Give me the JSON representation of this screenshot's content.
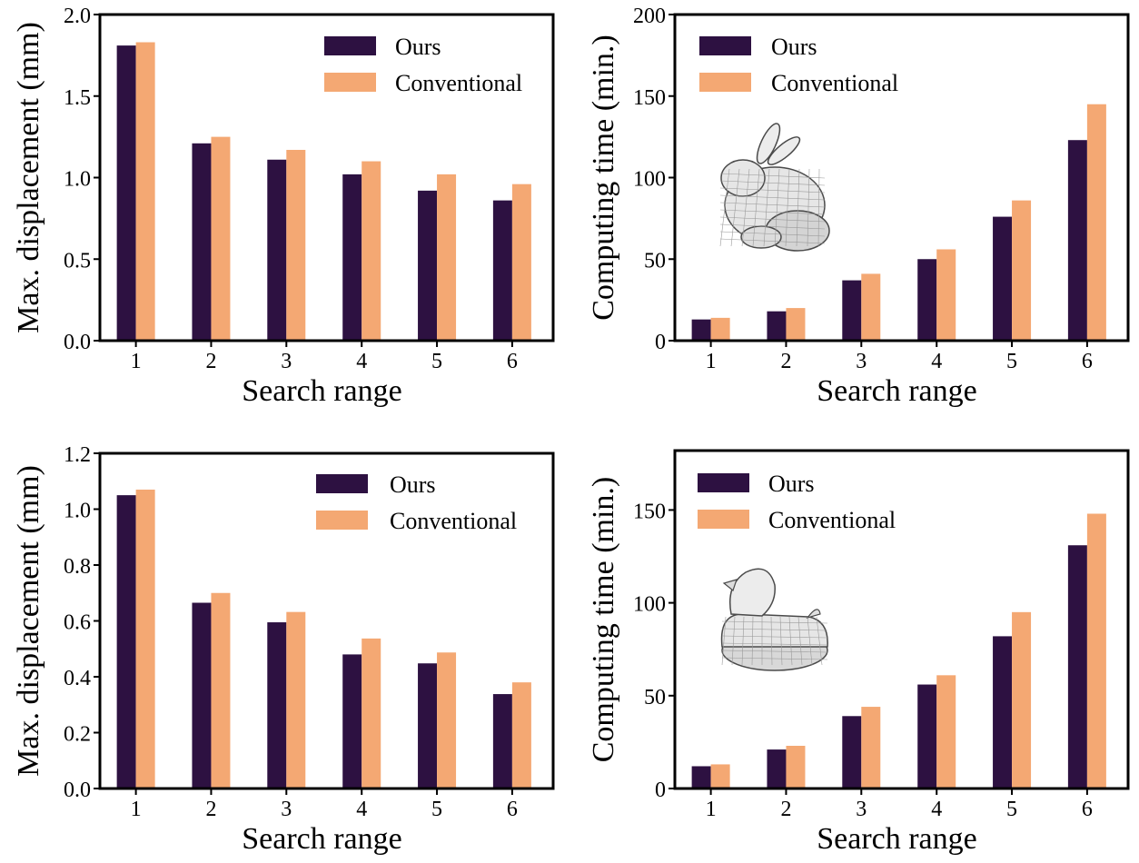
{
  "colors": {
    "ours": "#2d1141",
    "conventional": "#f4a873",
    "axis": "#000000"
  },
  "legend": {
    "ours": "Ours",
    "conventional": "Conventional"
  },
  "chart_data": [
    {
      "type": "bar",
      "title": "",
      "xlabel": "Search range",
      "ylabel": "Max. displacement (mm)",
      "categories": [
        "1",
        "2",
        "3",
        "4",
        "5",
        "6"
      ],
      "series": [
        {
          "name": "Ours",
          "values": [
            1.81,
            1.21,
            1.11,
            1.02,
            0.92,
            0.86
          ]
        },
        {
          "name": "Conventional",
          "values": [
            1.83,
            1.25,
            1.17,
            1.1,
            1.02,
            0.96
          ]
        }
      ],
      "ylim": [
        0,
        2.0
      ],
      "yticks": [
        "0.0",
        "0.5",
        "1.0",
        "1.5",
        "2.0"
      ],
      "legend_position": "top-right",
      "inset": ""
    },
    {
      "type": "bar",
      "title": "",
      "xlabel": "Search range",
      "ylabel": "Computing time (min.)",
      "categories": [
        "1",
        "2",
        "3",
        "4",
        "5",
        "6"
      ],
      "series": [
        {
          "name": "Ours",
          "values": [
            13,
            18,
            37,
            50,
            76,
            123
          ]
        },
        {
          "name": "Conventional",
          "values": [
            14,
            20,
            41,
            56,
            86,
            145
          ]
        }
      ],
      "ylim": [
        0,
        200
      ],
      "yticks": [
        "0",
        "50",
        "100",
        "150",
        "200"
      ],
      "legend_position": "top-left",
      "inset": "bunny"
    },
    {
      "type": "bar",
      "title": "",
      "xlabel": "Search range",
      "ylabel": "Max. displacement (mm)",
      "categories": [
        "1",
        "2",
        "3",
        "4",
        "5",
        "6"
      ],
      "series": [
        {
          "name": "Ours",
          "values": [
            1.05,
            0.665,
            0.595,
            0.48,
            0.448,
            0.338
          ]
        },
        {
          "name": "Conventional",
          "values": [
            1.07,
            0.7,
            0.632,
            0.537,
            0.487,
            0.38
          ]
        }
      ],
      "ylim": [
        0,
        1.2
      ],
      "yticks": [
        "0.0",
        "0.2",
        "0.4",
        "0.6",
        "0.8",
        "1.0",
        "1.2"
      ],
      "legend_position": "top-right",
      "inset": ""
    },
    {
      "type": "bar",
      "title": "",
      "xlabel": "Search range",
      "ylabel": "Computing time (min.)",
      "categories": [
        "1",
        "2",
        "3",
        "4",
        "5",
        "6"
      ],
      "series": [
        {
          "name": "Ours",
          "values": [
            12,
            21,
            39,
            56,
            82,
            131
          ]
        },
        {
          "name": "Conventional",
          "values": [
            13,
            23,
            44,
            61,
            95,
            148
          ]
        }
      ],
      "ylim": [
        0,
        182
      ],
      "yticks": [
        "0",
        "50",
        "100",
        "150"
      ],
      "legend_position": "top-left",
      "inset": "duck"
    }
  ]
}
